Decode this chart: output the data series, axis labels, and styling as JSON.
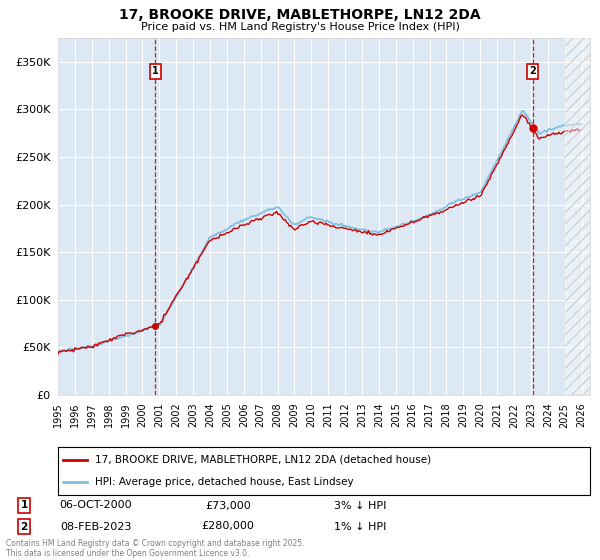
{
  "title": "17, BROOKE DRIVE, MABLETHORPE, LN12 2DA",
  "subtitle": "Price paid vs. HM Land Registry's House Price Index (HPI)",
  "yticks": [
    0,
    50000,
    100000,
    150000,
    200000,
    250000,
    300000,
    350000
  ],
  "ylim": [
    0,
    375000
  ],
  "xlim_start": 1995.0,
  "xlim_end": 2026.5,
  "background_color": "#dce9f5",
  "hpi_color": "#7fbfdf",
  "price_color": "#cc0000",
  "sale1_date": "06-OCT-2000",
  "sale1_price": 73000,
  "sale1_label": "3% ↓ HPI",
  "sale1_year": 2000.77,
  "sale2_date": "08-FEB-2023",
  "sale2_price": 280000,
  "sale2_label": "1% ↓ HPI",
  "sale2_year": 2023.1,
  "legend_line1": "17, BROOKE DRIVE, MABLETHORPE, LN12 2DA (detached house)",
  "legend_line2": "HPI: Average price, detached house, East Lindsey",
  "footer": "Contains HM Land Registry data © Crown copyright and database right 2025.\nThis data is licensed under the Open Government Licence v3.0."
}
